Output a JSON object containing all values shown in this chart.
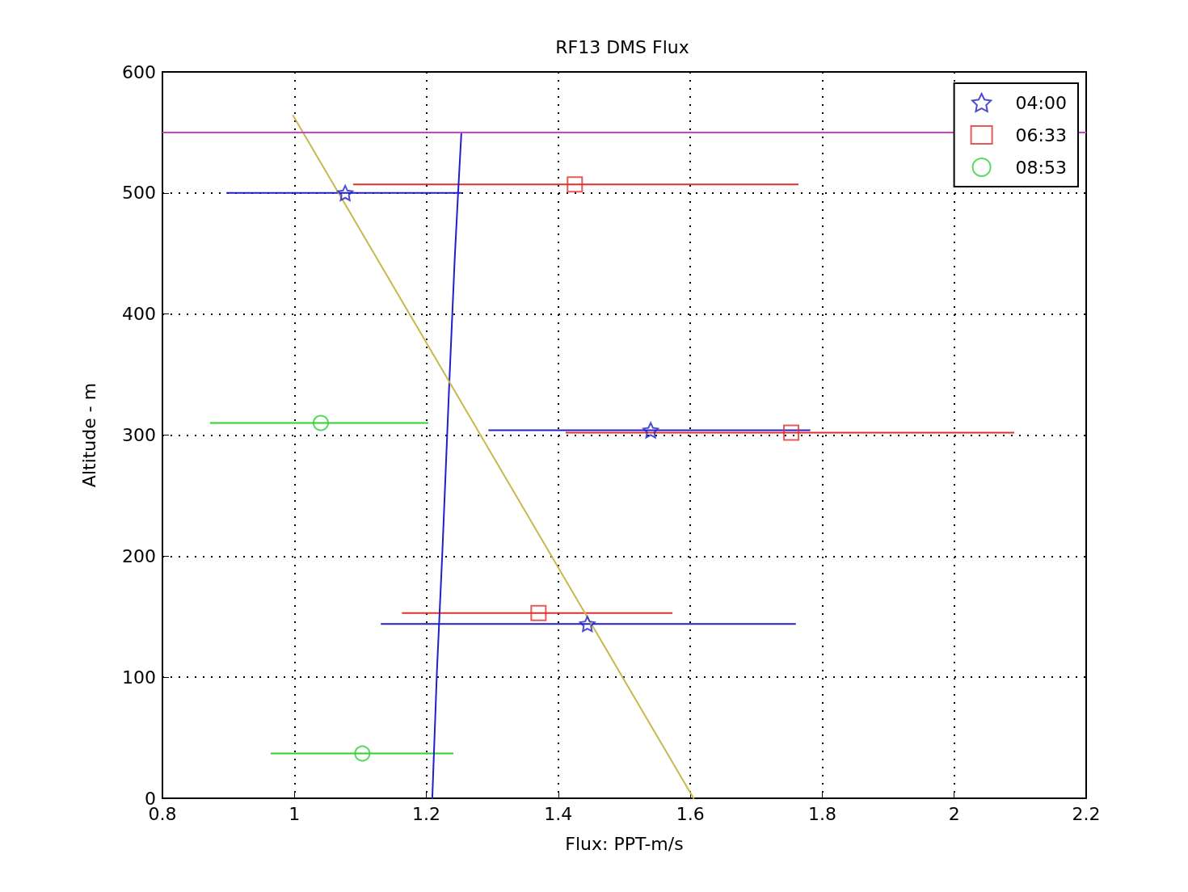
{
  "chart_data": {
    "type": "scatter",
    "title": "RF13 DMS Flux",
    "xlabel": "Flux: PPT-m/s",
    "ylabel": "Altitude - m",
    "xlim": [
      0.8,
      2.2
    ],
    "xticks": [
      0.8,
      1,
      1.2,
      1.4,
      1.6,
      1.8,
      2,
      2.2
    ],
    "ylim": [
      0,
      600
    ],
    "yticks": [
      0,
      100,
      200,
      300,
      400,
      500,
      600
    ],
    "grid": true,
    "legend": "top right",
    "series": [
      {
        "name": "04:00",
        "color": "#2020c8",
        "marker": "star",
        "x": [
          1.077,
          1.54,
          1.444
        ],
        "values": [
          500,
          304,
          144
        ],
        "xerrors": [
          [
            0.897,
            1.253
          ],
          [
            1.294,
            1.782
          ],
          [
            1.131,
            1.76
          ]
        ]
      },
      {
        "name": "06:33",
        "color": "#e03030",
        "marker": "square",
        "x": [
          1.425,
          1.753,
          1.37
        ],
        "values": [
          507,
          302,
          153
        ],
        "xerrors": [
          [
            1.089,
            1.764
          ],
          [
            1.411,
            2.091
          ],
          [
            1.163,
            1.573
          ]
        ]
      },
      {
        "name": "08:53",
        "color": "#30d030",
        "marker": "circle",
        "x": [
          1.04,
          1.103
        ],
        "values": [
          310,
          37
        ],
        "xerrors": [
          [
            0.872,
            1.203
          ],
          [
            0.964,
            1.241
          ]
        ]
      },
      {
        "type": "line",
        "color": "#2020c8",
        "marker": "none",
        "x": [
          1.209,
          1.216,
          1.224,
          1.235,
          1.243,
          1.248,
          1.253
        ],
        "values": [
          0,
          105,
          200,
          346,
          446,
          499,
          549
        ]
      },
      {
        "type": "line",
        "color": "#c8b850",
        "marker": "none",
        "x": [
          0.998,
          1.605
        ],
        "values": [
          564,
          0
        ]
      }
    ],
    "ref_lines": [
      {
        "axis": "y",
        "value": 550,
        "color": "#d040d0"
      }
    ]
  }
}
